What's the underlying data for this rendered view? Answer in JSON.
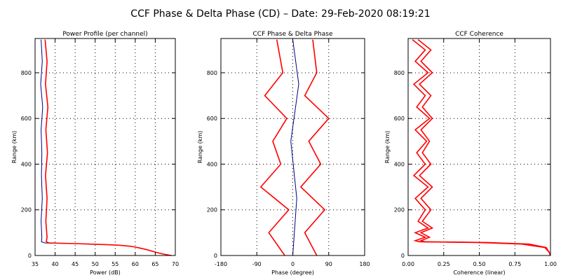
{
  "title": "CCF Phase & Delta Phase (CD) – Date: 29-Feb-2020 08:19:21",
  "colors": {
    "trace_primary": "#ff0000",
    "trace_secondary": "#000080",
    "axes": "#000000",
    "grid": "#000000"
  },
  "chart_data": [
    {
      "type": "line",
      "title": "Power Profile (per channel)",
      "xlabel": "Power (dB)",
      "ylabel": "Range (km)",
      "xlim": [
        35,
        70
      ],
      "ylim": [
        0,
        950
      ],
      "xticks": [
        "35",
        "40",
        "45",
        "50",
        "55",
        "60",
        "65",
        "70"
      ],
      "yticks": [
        "0",
        "200",
        "400",
        "600",
        "800"
      ],
      "grid": "dotted",
      "series": [
        {
          "color": "#000080",
          "x": [
            36.5,
            36.8,
            36.4,
            36.9,
            36.5,
            36.7,
            36.6,
            36.8,
            36.5,
            36.7,
            36.6,
            37.5,
            45,
            52,
            56,
            59,
            61,
            63,
            65,
            67,
            69
          ],
          "y": [
            945,
            850,
            750,
            650,
            550,
            450,
            350,
            250,
            150,
            80,
            60,
            55,
            52,
            48,
            45,
            40,
            33,
            25,
            15,
            6,
            0
          ]
        },
        {
          "color": "#ff0000",
          "x": [
            37.5,
            38.0,
            37.6,
            38.2,
            37.7,
            38.1,
            37.6,
            38.0,
            37.7,
            38.0,
            37.8,
            38.5,
            45,
            52,
            56,
            59,
            61,
            63,
            65,
            67,
            69
          ],
          "y": [
            945,
            850,
            750,
            650,
            550,
            450,
            350,
            250,
            150,
            80,
            60,
            55,
            52,
            48,
            45,
            40,
            33,
            25,
            15,
            6,
            0
          ]
        }
      ]
    },
    {
      "type": "line",
      "title": "CCF Phase & Delta Phase",
      "xlabel": "Phase (degree)",
      "ylabel": "Range (km)",
      "xlim": [
        -180,
        180
      ],
      "ylim": [
        0,
        950
      ],
      "xticks": [
        "-180",
        "-90",
        "0",
        "90",
        "180"
      ],
      "yticks": [
        "0",
        "200",
        "400",
        "600",
        "800"
      ],
      "grid": "dotted",
      "series": [
        {
          "color": "#000080",
          "x": [
            0,
            10,
            -5,
            15,
            0
          ],
          "y": [
            0,
            250,
            500,
            750,
            945
          ]
        },
        {
          "color": "#ff0000",
          "x": [
            -20,
            -60,
            -10,
            -80,
            -30,
            -50,
            -15,
            -70,
            -25,
            -40
          ],
          "y": [
            0,
            100,
            200,
            300,
            400,
            500,
            600,
            700,
            800,
            945
          ]
        },
        {
          "color": "#ff0000",
          "x": [
            60,
            30,
            80,
            20,
            70,
            40,
            90,
            30,
            60,
            50
          ],
          "y": [
            0,
            100,
            200,
            300,
            400,
            500,
            600,
            700,
            800,
            945
          ]
        }
      ]
    },
    {
      "type": "line",
      "title": "CCF Coherence",
      "xlabel": "Coherence (linear)",
      "ylabel": "Range (km)",
      "xlim": [
        0,
        1
      ],
      "ylim": [
        0,
        950
      ],
      "xticks": [
        "0.00",
        "0.25",
        "0.50",
        "0.75",
        "1.00"
      ],
      "yticks": [
        "0",
        "200",
        "400",
        "600",
        "800"
      ],
      "grid": "dotted",
      "series": [
        {
          "color": "#ff0000",
          "x": [
            0.03,
            0.12,
            0.05,
            0.14,
            0.04,
            0.12,
            0.06,
            0.15,
            0.05,
            0.13,
            0.06,
            0.12,
            0.04,
            0.14,
            0.05,
            0.12,
            0.07,
            0.14,
            0.05,
            0.12,
            0.05,
            0.08,
            0.5,
            0.8,
            0.96,
            0.99,
            1.0
          ],
          "y": [
            945,
            900,
            850,
            800,
            750,
            700,
            650,
            600,
            550,
            500,
            450,
            400,
            350,
            300,
            250,
            200,
            150,
            120,
            100,
            80,
            65,
            60,
            57,
            50,
            35,
            15,
            0
          ]
        },
        {
          "color": "#ff0000",
          "x": [
            0.07,
            0.16,
            0.09,
            0.17,
            0.08,
            0.16,
            0.1,
            0.17,
            0.09,
            0.15,
            0.1,
            0.16,
            0.08,
            0.17,
            0.09,
            0.16,
            0.1,
            0.17,
            0.09,
            0.15,
            0.09,
            0.12,
            0.55,
            0.85,
            0.97,
            0.99,
            1.0
          ],
          "y": [
            945,
            900,
            850,
            800,
            750,
            700,
            650,
            600,
            550,
            500,
            450,
            400,
            350,
            300,
            250,
            200,
            150,
            120,
            100,
            80,
            65,
            60,
            57,
            50,
            35,
            15,
            0
          ]
        }
      ]
    }
  ]
}
